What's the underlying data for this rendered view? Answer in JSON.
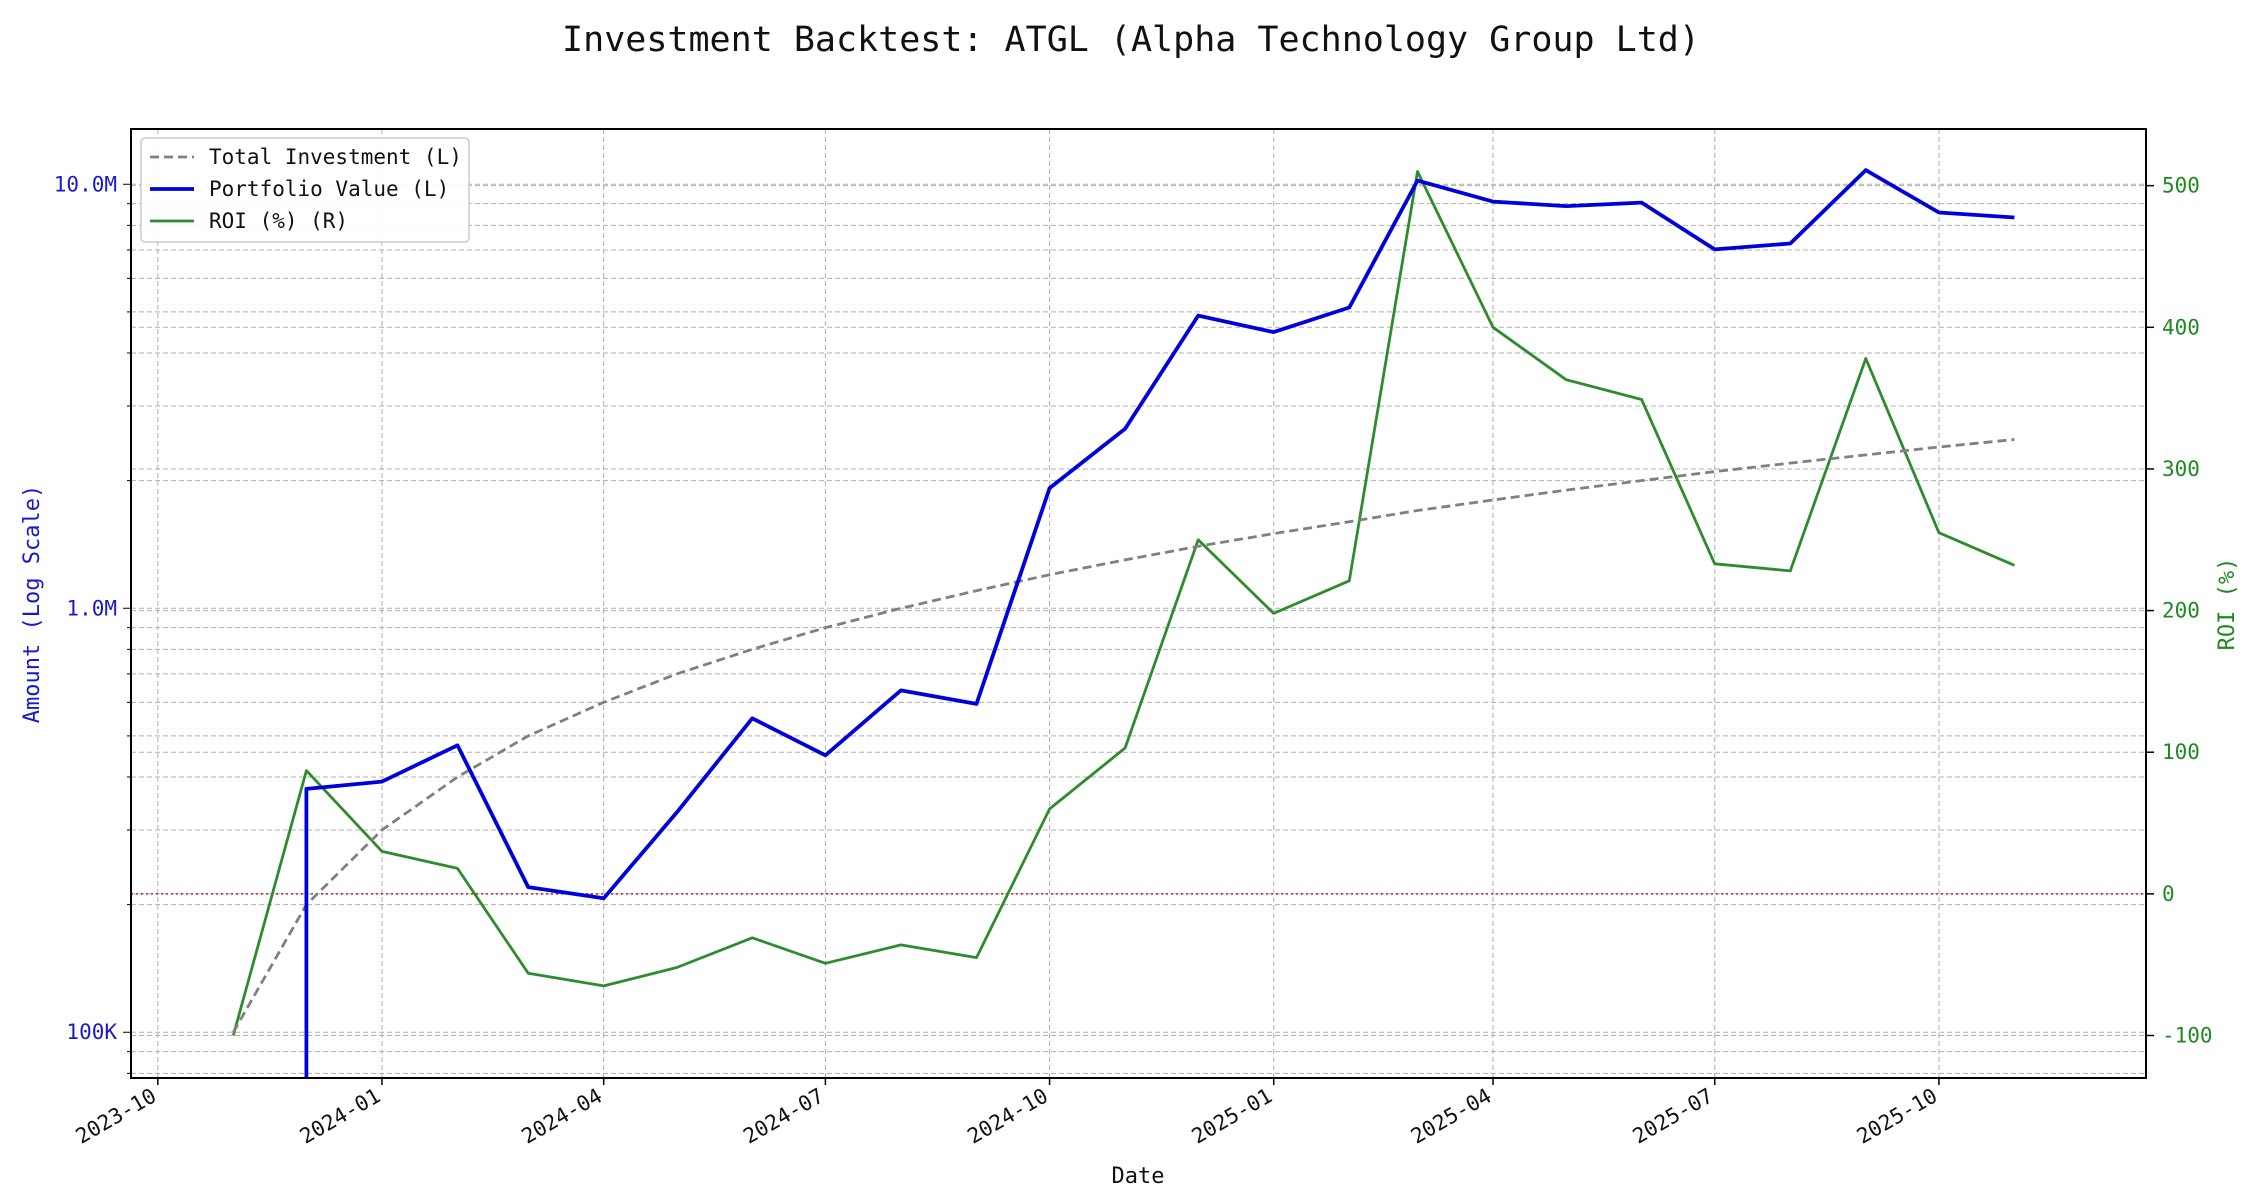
{
  "chart_data": {
    "type": "line",
    "title": "Investment Backtest: ATGL (Alpha Technology Group Ltd)",
    "xlabel": "Date",
    "ylabel_left": "Amount (Log Scale)",
    "ylabel_right": "ROI (%)",
    "left_scale": "log",
    "left_ylim": [
      78000,
      13500000
    ],
    "right_ylim": [
      -130,
      540
    ],
    "xlim": [
      "2023-09-20",
      "2025-12-25"
    ],
    "grid": true,
    "legend_position": "top-left",
    "x_ticks": [
      "2023-10",
      "2024-01",
      "2024-04",
      "2024-07",
      "2024-10",
      "2025-01",
      "2025-04",
      "2025-07",
      "2025-10"
    ],
    "left_ticks": [
      {
        "value": 100000,
        "label": "100K"
      },
      {
        "value": 1000000,
        "label": "1.0M"
      },
      {
        "value": 10000000,
        "label": "10.0M"
      }
    ],
    "right_ticks": [
      -100,
      0,
      100,
      200,
      300,
      400,
      500
    ],
    "roi_zero_line": 0,
    "colors": {
      "total_investment": "#808080",
      "portfolio_value": "#0000dd",
      "roi": "#2e8b2e",
      "left_axis": "#1a1acc",
      "right_axis": "#1f8a1f",
      "zero_line": "#b22222"
    },
    "series": [
      {
        "name": "Total Investment (L)",
        "axis": "left",
        "style": "dashed",
        "points": [
          [
            "2023-11-01",
            100000
          ],
          [
            "2023-12-01",
            200000
          ],
          [
            "2024-01-01",
            300000
          ],
          [
            "2024-02-01",
            400000
          ],
          [
            "2024-03-01",
            500000
          ],
          [
            "2024-04-01",
            600000
          ],
          [
            "2024-05-01",
            700000
          ],
          [
            "2024-06-01",
            800000
          ],
          [
            "2024-07-01",
            900000
          ],
          [
            "2024-08-01",
            1000000
          ],
          [
            "2024-09-01",
            1100000
          ],
          [
            "2024-10-01",
            1200000
          ],
          [
            "2024-11-01",
            1300000
          ],
          [
            "2024-12-01",
            1400000
          ],
          [
            "2025-01-01",
            1500000
          ],
          [
            "2025-02-01",
            1600000
          ],
          [
            "2025-03-01",
            1700000
          ],
          [
            "2025-04-01",
            1800000
          ],
          [
            "2025-05-01",
            1900000
          ],
          [
            "2025-06-01",
            2000000
          ],
          [
            "2025-07-01",
            2100000
          ],
          [
            "2025-08-01",
            2200000
          ],
          [
            "2025-09-01",
            2300000
          ],
          [
            "2025-10-01",
            2400000
          ],
          [
            "2025-11-01",
            2500000
          ]
        ]
      },
      {
        "name": "Portfolio Value (L)",
        "axis": "left",
        "style": "solid",
        "points": [
          [
            "2023-12-01",
            60000
          ],
          [
            "2023-12-01",
            375000
          ],
          [
            "2024-01-01",
            390000
          ],
          [
            "2024-02-01",
            475000
          ],
          [
            "2024-03-01",
            220000
          ],
          [
            "2024-04-01",
            207000
          ],
          [
            "2024-05-01",
            330000
          ],
          [
            "2024-06-01",
            550000
          ],
          [
            "2024-07-01",
            450000
          ],
          [
            "2024-08-01",
            640000
          ],
          [
            "2024-09-01",
            595000
          ],
          [
            "2024-10-01",
            1920000
          ],
          [
            "2024-11-01",
            2650000
          ],
          [
            "2024-12-01",
            4900000
          ],
          [
            "2025-01-01",
            4480000
          ],
          [
            "2025-02-01",
            5120000
          ],
          [
            "2025-03-01",
            10200000
          ],
          [
            "2025-04-01",
            9100000
          ],
          [
            "2025-05-01",
            8880000
          ],
          [
            "2025-06-01",
            9050000
          ],
          [
            "2025-07-01",
            7020000
          ],
          [
            "2025-08-01",
            7250000
          ],
          [
            "2025-09-01",
            10800000
          ],
          [
            "2025-10-01",
            8580000
          ],
          [
            "2025-11-01",
            8350000
          ]
        ]
      },
      {
        "name": "ROI (%) (R)",
        "axis": "right",
        "style": "solid",
        "points": [
          [
            "2023-11-01",
            -100
          ],
          [
            "2023-12-01",
            87
          ],
          [
            "2024-01-01",
            30
          ],
          [
            "2024-02-01",
            18
          ],
          [
            "2024-03-01",
            -56
          ],
          [
            "2024-04-01",
            -65
          ],
          [
            "2024-05-01",
            -52
          ],
          [
            "2024-06-01",
            -31
          ],
          [
            "2024-07-01",
            -49
          ],
          [
            "2024-08-01",
            -36
          ],
          [
            "2024-09-01",
            -45
          ],
          [
            "2024-10-01",
            60
          ],
          [
            "2024-11-01",
            103
          ],
          [
            "2024-12-01",
            250
          ],
          [
            "2025-01-01",
            198
          ],
          [
            "2025-02-01",
            221
          ],
          [
            "2025-03-01",
            510
          ],
          [
            "2025-04-01",
            400
          ],
          [
            "2025-05-01",
            363
          ],
          [
            "2025-06-01",
            349
          ],
          [
            "2025-07-01",
            233
          ],
          [
            "2025-08-01",
            228
          ],
          [
            "2025-09-01",
            378
          ],
          [
            "2025-10-01",
            255
          ],
          [
            "2025-11-01",
            232
          ]
        ]
      }
    ]
  }
}
